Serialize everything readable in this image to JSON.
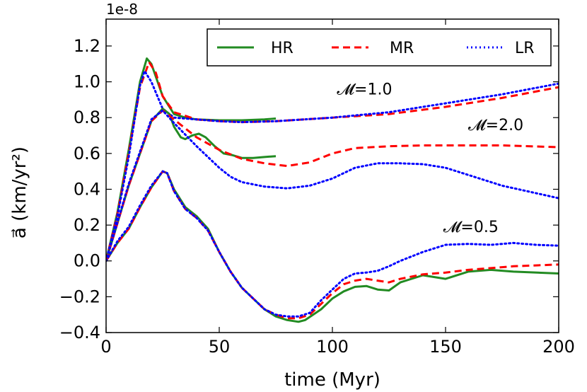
{
  "chart_data": {
    "type": "line",
    "xlabel": "time (Myr)",
    "ylabel": "a⃗ (km/yr²)",
    "y_scale_label": "1e-8",
    "xlim": [
      0,
      200
    ],
    "ylim": [
      -0.4,
      1.35
    ],
    "xticks": [
      0,
      50,
      100,
      150,
      200
    ],
    "xtick_labels": [
      "0",
      "50",
      "100",
      "150",
      "200"
    ],
    "yticks": [
      -0.4,
      -0.2,
      0.0,
      0.2,
      0.4,
      0.6,
      0.8,
      1.0,
      1.2
    ],
    "ytick_labels": [
      "−0.4",
      "−0.2",
      "0.0",
      "0.2",
      "0.4",
      "0.6",
      "0.8",
      "1.0",
      "1.2"
    ],
    "grid": false,
    "legend": {
      "location": "top-right",
      "entries": [
        {
          "name": "HR",
          "color": "#228B22",
          "style": "solid"
        },
        {
          "name": "MR",
          "color": "#ff0000",
          "style": "dashed"
        },
        {
          "name": "LR",
          "color": "#0000ff",
          "style": "dotted"
        }
      ]
    },
    "annotations": [
      {
        "text": "𝓜=1.0",
        "x": 102,
        "y": 0.93
      },
      {
        "text": "𝓜=2.0",
        "x": 160,
        "y": 0.73
      },
      {
        "text": "𝓜=0.5",
        "x": 149,
        "y": 0.16
      }
    ],
    "series": [
      {
        "name": "HR",
        "mach": "1.0",
        "color": "#228B22",
        "style": "solid",
        "x": [
          0,
          5,
          10,
          15,
          18,
          20,
          25,
          30,
          35,
          40,
          50,
          60,
          70,
          75
        ],
        "y": [
          0,
          0.27,
          0.62,
          1.0,
          1.13,
          1.1,
          0.92,
          0.82,
          0.8,
          0.79,
          0.785,
          0.785,
          0.79,
          0.795
        ]
      },
      {
        "name": "MR",
        "mach": "1.0",
        "color": "#ff0000",
        "style": "dashed",
        "x": [
          0,
          5,
          10,
          15,
          19,
          22,
          25,
          30,
          40,
          50,
          60,
          75,
          100,
          125,
          150,
          175,
          200
        ],
        "y": [
          0,
          0.26,
          0.6,
          0.97,
          1.11,
          1.05,
          0.92,
          0.83,
          0.79,
          0.78,
          0.775,
          0.78,
          0.8,
          0.82,
          0.86,
          0.91,
          0.97
        ]
      },
      {
        "name": "LR",
        "mach": "1.0",
        "color": "#0000ff",
        "style": "dotted",
        "x": [
          0,
          5,
          10,
          15,
          17,
          20,
          25,
          30,
          40,
          50,
          60,
          75,
          100,
          125,
          150,
          175,
          200
        ],
        "y": [
          0,
          0.25,
          0.58,
          0.98,
          1.06,
          1.0,
          0.85,
          0.8,
          0.79,
          0.78,
          0.775,
          0.78,
          0.8,
          0.83,
          0.88,
          0.93,
          0.99
        ]
      },
      {
        "name": "HR",
        "mach": "2.0",
        "color": "#228B22",
        "style": "solid",
        "x": [
          0,
          10,
          20,
          25,
          28,
          30,
          33,
          35,
          38,
          41,
          44,
          48,
          52,
          56,
          60,
          65,
          70,
          75
        ],
        "y": [
          0,
          0.42,
          0.78,
          0.85,
          0.82,
          0.75,
          0.69,
          0.68,
          0.7,
          0.71,
          0.69,
          0.64,
          0.6,
          0.59,
          0.575,
          0.575,
          0.58,
          0.585
        ]
      },
      {
        "name": "MR",
        "mach": "2.0",
        "color": "#ff0000",
        "style": "dashed",
        "x": [
          0,
          10,
          20,
          25,
          30,
          40,
          50,
          60,
          70,
          80,
          90,
          100,
          110,
          125,
          140,
          160,
          175,
          200
        ],
        "y": [
          0,
          0.42,
          0.78,
          0.84,
          0.79,
          0.69,
          0.62,
          0.57,
          0.545,
          0.53,
          0.55,
          0.6,
          0.63,
          0.64,
          0.645,
          0.645,
          0.645,
          0.635
        ]
      },
      {
        "name": "LR",
        "mach": "2.0",
        "color": "#0000ff",
        "style": "dotted",
        "x": [
          0,
          10,
          20,
          25,
          30,
          40,
          50,
          55,
          60,
          70,
          80,
          90,
          100,
          110,
          120,
          130,
          140,
          150,
          160,
          175,
          200
        ],
        "y": [
          0,
          0.43,
          0.79,
          0.84,
          0.77,
          0.64,
          0.52,
          0.47,
          0.44,
          0.415,
          0.405,
          0.42,
          0.46,
          0.52,
          0.545,
          0.545,
          0.54,
          0.52,
          0.48,
          0.42,
          0.35
        ]
      },
      {
        "name": "HR",
        "mach": "0.5",
        "color": "#228B22",
        "style": "solid",
        "x": [
          0,
          5,
          10,
          15,
          20,
          25,
          27,
          30,
          35,
          40,
          45,
          50,
          55,
          60,
          65,
          70,
          75,
          80,
          85,
          88,
          95,
          100,
          105,
          110,
          115,
          120,
          125,
          130,
          140,
          150,
          160,
          170,
          180,
          200
        ],
        "y": [
          0,
          0.1,
          0.18,
          0.3,
          0.41,
          0.5,
          0.49,
          0.4,
          0.3,
          0.25,
          0.18,
          0.05,
          -0.06,
          -0.15,
          -0.21,
          -0.27,
          -0.31,
          -0.33,
          -0.34,
          -0.33,
          -0.27,
          -0.21,
          -0.17,
          -0.145,
          -0.14,
          -0.16,
          -0.165,
          -0.12,
          -0.08,
          -0.1,
          -0.06,
          -0.05,
          -0.06,
          -0.07
        ]
      },
      {
        "name": "MR",
        "mach": "0.5",
        "color": "#ff0000",
        "style": "dashed",
        "x": [
          0,
          5,
          10,
          15,
          20,
          25,
          27,
          30,
          35,
          40,
          45,
          50,
          55,
          60,
          65,
          70,
          75,
          80,
          85,
          90,
          95,
          100,
          105,
          110,
          115,
          120,
          125,
          130,
          140,
          150,
          160,
          170,
          180,
          200
        ],
        "y": [
          0,
          0.1,
          0.18,
          0.3,
          0.41,
          0.5,
          0.49,
          0.39,
          0.29,
          0.24,
          0.17,
          0.05,
          -0.06,
          -0.15,
          -0.21,
          -0.27,
          -0.3,
          -0.32,
          -0.32,
          -0.3,
          -0.24,
          -0.18,
          -0.13,
          -0.11,
          -0.1,
          -0.11,
          -0.12,
          -0.1,
          -0.075,
          -0.065,
          -0.05,
          -0.04,
          -0.03,
          -0.02
        ]
      },
      {
        "name": "LR",
        "mach": "0.5",
        "color": "#0000ff",
        "style": "dotted",
        "x": [
          0,
          5,
          10,
          15,
          20,
          25,
          27,
          30,
          35,
          40,
          45,
          50,
          55,
          60,
          65,
          70,
          75,
          80,
          85,
          90,
          95,
          100,
          105,
          110,
          115,
          120,
          125,
          130,
          140,
          150,
          160,
          170,
          180,
          190,
          200
        ],
        "y": [
          0,
          0.11,
          0.19,
          0.31,
          0.42,
          0.5,
          0.49,
          0.39,
          0.29,
          0.24,
          0.17,
          0.05,
          -0.06,
          -0.15,
          -0.21,
          -0.27,
          -0.3,
          -0.31,
          -0.31,
          -0.29,
          -0.22,
          -0.16,
          -0.1,
          -0.07,
          -0.065,
          -0.055,
          -0.03,
          0.0,
          0.05,
          0.09,
          0.095,
          0.09,
          0.1,
          0.09,
          0.085
        ]
      }
    ]
  }
}
